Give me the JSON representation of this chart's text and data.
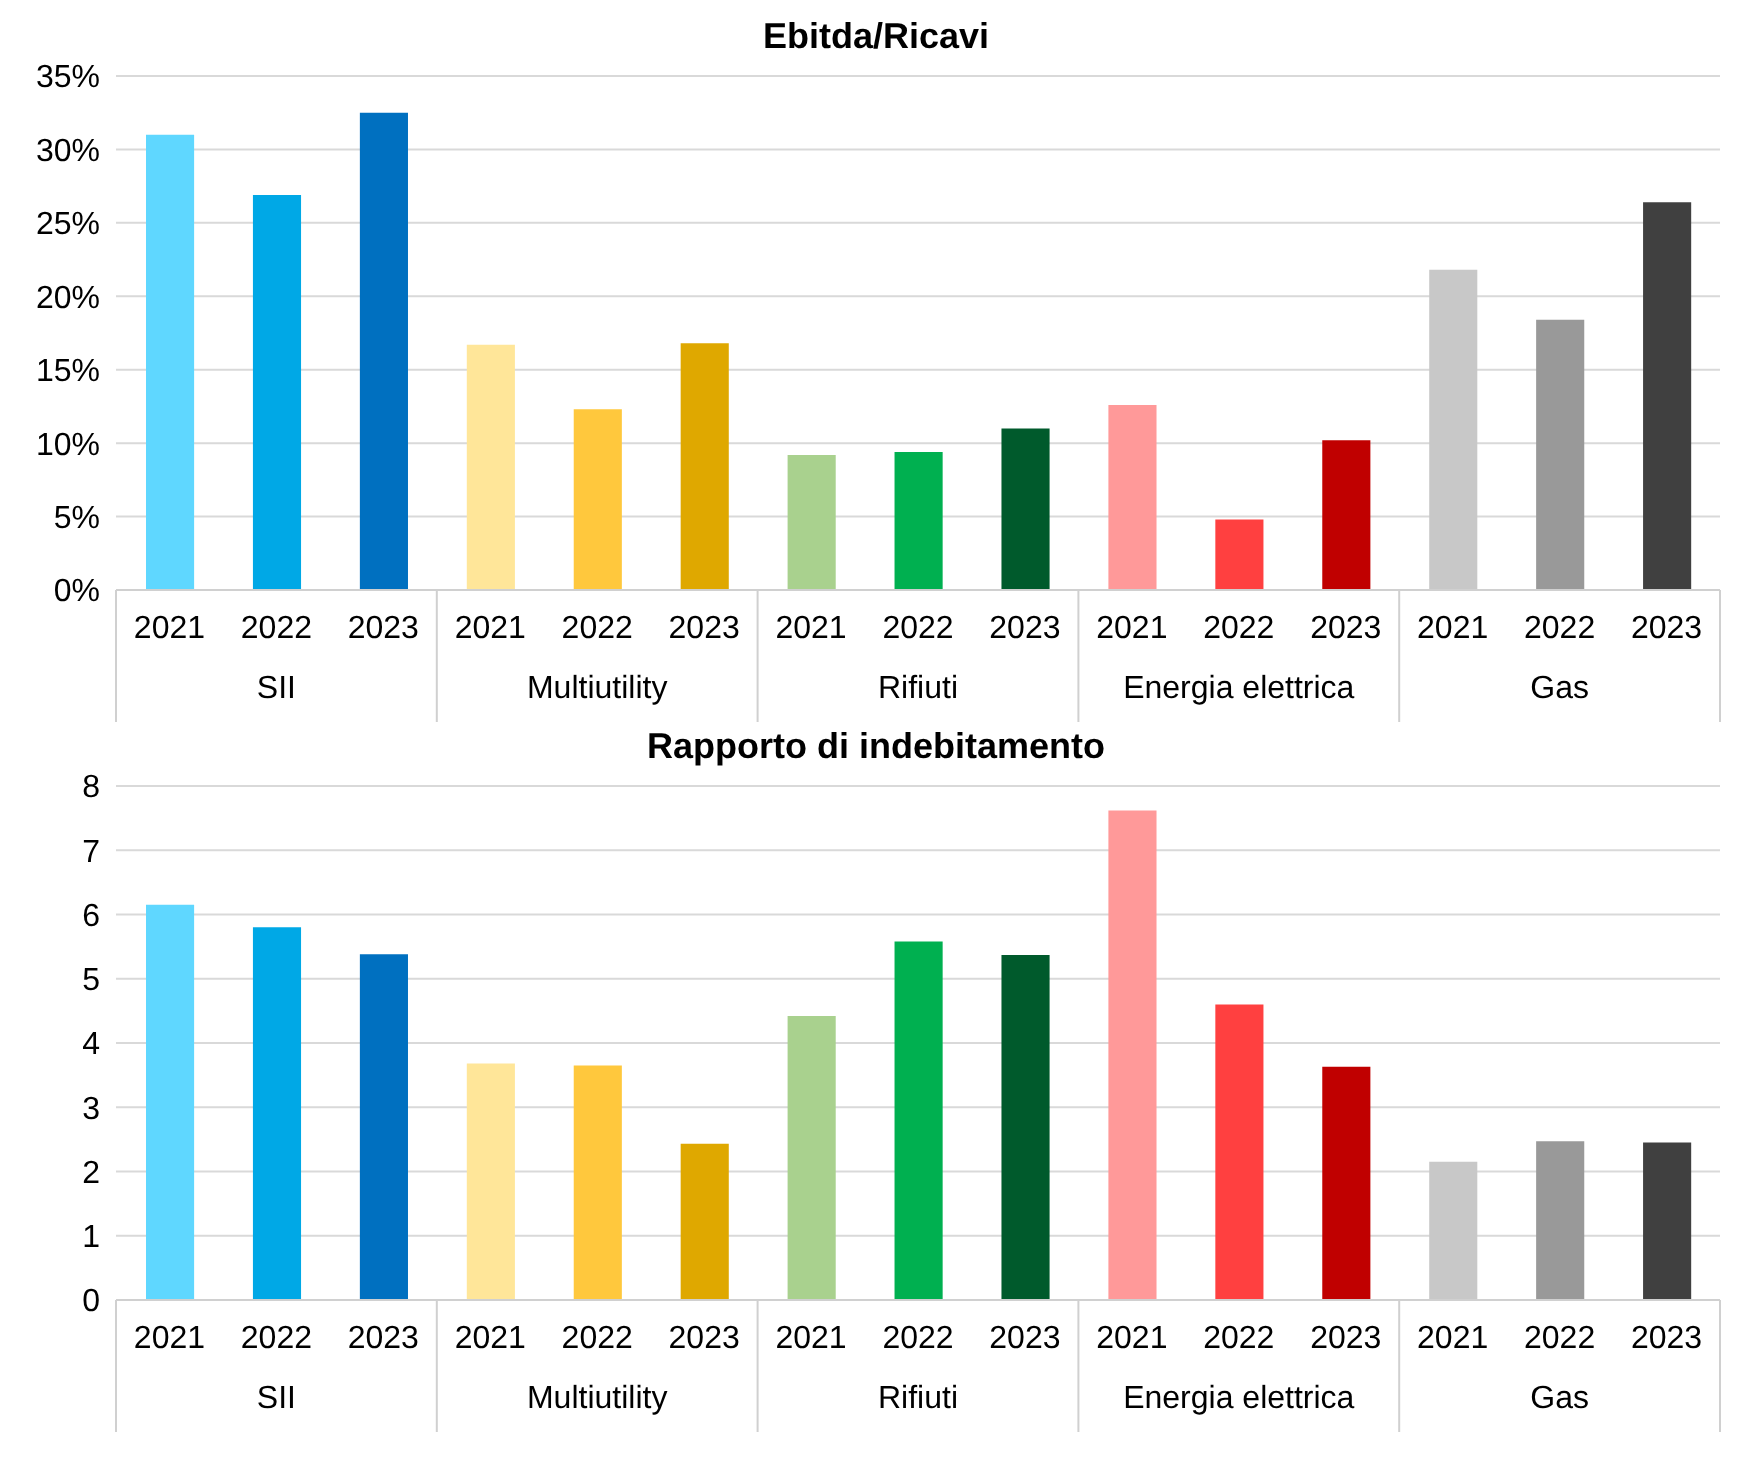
{
  "chart_data": [
    {
      "type": "bar",
      "title": "Ebitda/Ricavi",
      "categories": [
        "2021",
        "2022",
        "2023",
        "2021",
        "2022",
        "2023",
        "2021",
        "2022",
        "2023",
        "2021",
        "2022",
        "2023",
        "2021",
        "2022",
        "2023"
      ],
      "values": [
        31.0,
        26.9,
        32.5,
        16.7,
        12.3,
        16.8,
        9.2,
        9.4,
        11.0,
        12.6,
        4.8,
        10.2,
        21.8,
        18.4,
        26.4
      ],
      "colors": [
        "#5fd7ff",
        "#00a8e6",
        "#0070c0",
        "#ffe699",
        "#ffc83d",
        "#dfa800",
        "#a9d18e",
        "#00b050",
        "#005a2c",
        "#ff9999",
        "#ff4040",
        "#c00000",
        "#c8c8c8",
        "#999999",
        "#404040"
      ],
      "annotations": [
        "SII",
        "Multiutility",
        "Rifiuti",
        "Energia elettrica",
        "Gas"
      ],
      "ylim": [
        0,
        35
      ],
      "yticks": [
        {
          "value": 0,
          "label": "0%"
        },
        {
          "value": 5,
          "label": "5%"
        },
        {
          "value": 10,
          "label": "10%"
        },
        {
          "value": 15,
          "label": "15%"
        },
        {
          "value": 20,
          "label": "20%"
        },
        {
          "value": 25,
          "label": "25%"
        },
        {
          "value": 30,
          "label": "30%"
        },
        {
          "value": 35,
          "label": "35%"
        }
      ],
      "grid": "y",
      "legend": false
    },
    {
      "type": "bar",
      "title": "Rapporto di indebitamento",
      "categories": [
        "2021",
        "2022",
        "2023",
        "2021",
        "2022",
        "2023",
        "2021",
        "2022",
        "2023",
        "2021",
        "2022",
        "2023",
        "2021",
        "2022",
        "2023"
      ],
      "values": [
        6.15,
        5.8,
        5.38,
        3.68,
        3.65,
        2.43,
        4.42,
        5.58,
        5.37,
        7.62,
        4.6,
        3.63,
        2.15,
        2.47,
        2.45
      ],
      "colors": [
        "#5fd7ff",
        "#00a8e6",
        "#0070c0",
        "#ffe699",
        "#ffc83d",
        "#dfa800",
        "#a9d18e",
        "#00b050",
        "#005a2c",
        "#ff9999",
        "#ff4040",
        "#c00000",
        "#c8c8c8",
        "#999999",
        "#404040"
      ],
      "annotations": [
        "SII",
        "Multiutility",
        "Rifiuti",
        "Energia elettrica",
        "Gas"
      ],
      "ylim": [
        0,
        8
      ],
      "yticks": [
        0,
        1,
        2,
        3,
        4,
        5,
        6,
        7,
        8
      ],
      "grid": "y",
      "legend": false
    }
  ]
}
